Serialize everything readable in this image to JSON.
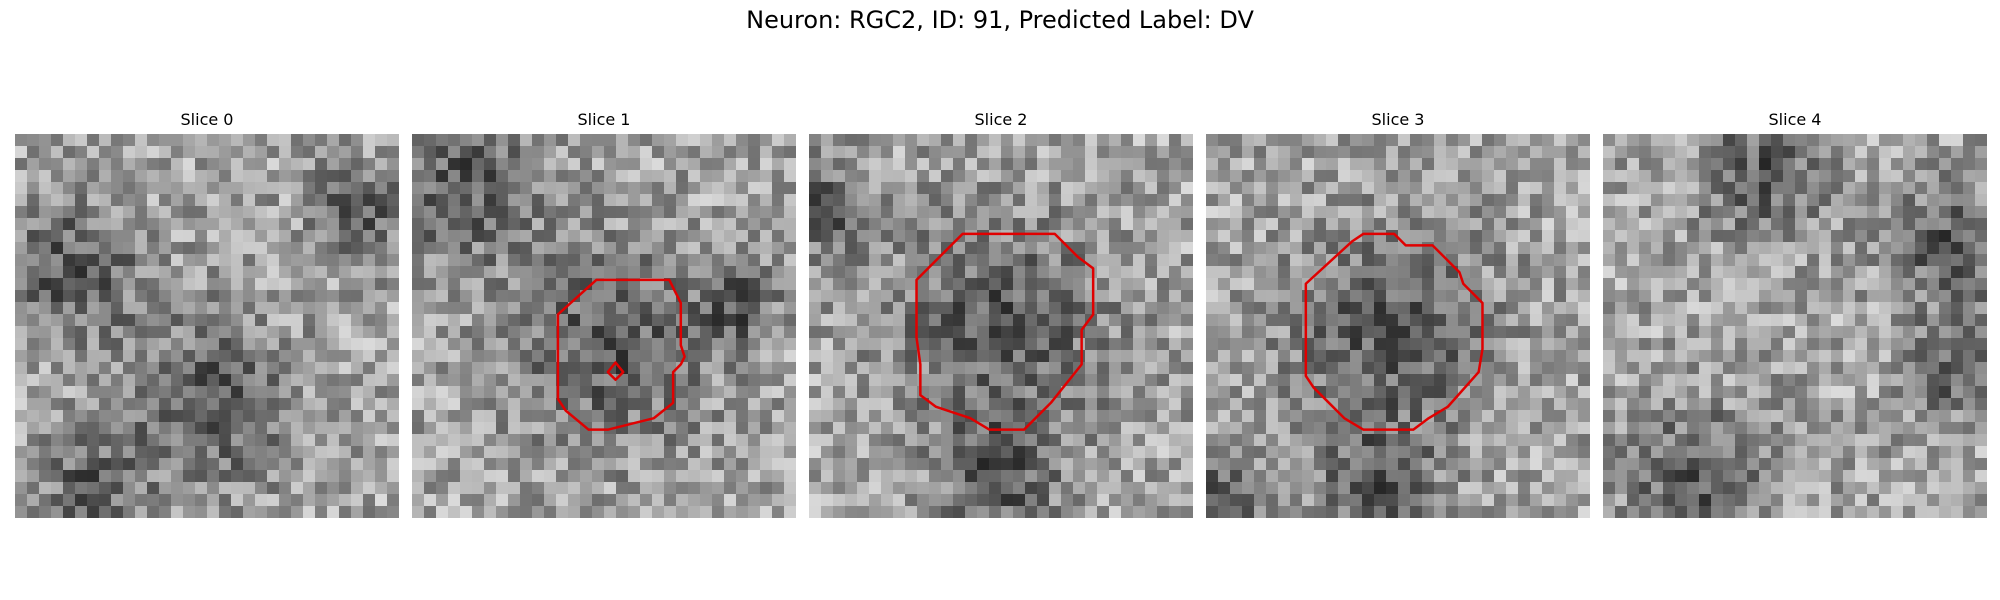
{
  "figure": {
    "title": "Neuron: RGC2, ID: 91, Predicted Label: DV"
  },
  "panels": [
    {
      "title": "Slice 0",
      "seed": 11,
      "dark_spots": [
        [
          0.15,
          0.35,
          0.18
        ],
        [
          0.5,
          0.7,
          0.22
        ],
        [
          0.2,
          0.92,
          0.12
        ],
        [
          0.9,
          0.2,
          0.12
        ]
      ],
      "contours": []
    },
    {
      "title": "Slice 1",
      "seed": 23,
      "dark_spots": [
        [
          0.13,
          0.13,
          0.2
        ],
        [
          0.52,
          0.55,
          0.25
        ],
        [
          0.85,
          0.45,
          0.1
        ]
      ],
      "contours": [
        {
          "color": "#e00000",
          "points": [
            [
              0.38,
              0.47
            ],
            [
              0.48,
              0.38
            ],
            [
              0.67,
              0.38
            ],
            [
              0.7,
              0.44
            ],
            [
              0.7,
              0.55
            ],
            [
              0.71,
              0.58
            ],
            [
              0.7,
              0.6
            ],
            [
              0.68,
              0.62
            ],
            [
              0.68,
              0.7
            ],
            [
              0.63,
              0.74
            ],
            [
              0.51,
              0.77
            ],
            [
              0.46,
              0.77
            ],
            [
              0.4,
              0.72
            ],
            [
              0.38,
              0.69
            ]
          ]
        },
        {
          "color": "#e00000",
          "points": [
            [
              0.53,
              0.595
            ],
            [
              0.55,
              0.62
            ],
            [
              0.53,
              0.64
            ],
            [
              0.51,
              0.62
            ]
          ]
        }
      ]
    },
    {
      "title": "Slice 2",
      "seed": 37,
      "dark_spots": [
        [
          0.5,
          0.5,
          0.28
        ],
        [
          0.05,
          0.2,
          0.12
        ],
        [
          0.5,
          0.9,
          0.15
        ]
      ],
      "contours": [
        {
          "color": "#e00000",
          "points": [
            [
              0.28,
              0.38
            ],
            [
              0.4,
              0.26
            ],
            [
              0.64,
              0.26
            ],
            [
              0.7,
              0.32
            ],
            [
              0.74,
              0.35
            ],
            [
              0.74,
              0.47
            ],
            [
              0.71,
              0.51
            ],
            [
              0.71,
              0.6
            ],
            [
              0.63,
              0.7
            ],
            [
              0.56,
              0.77
            ],
            [
              0.47,
              0.77
            ],
            [
              0.42,
              0.74
            ],
            [
              0.33,
              0.71
            ],
            [
              0.29,
              0.68
            ],
            [
              0.29,
              0.6
            ],
            [
              0.28,
              0.53
            ]
          ]
        }
      ]
    },
    {
      "title": "Slice 3",
      "seed": 53,
      "dark_spots": [
        [
          0.48,
          0.52,
          0.26
        ],
        [
          0.45,
          0.92,
          0.15
        ],
        [
          0.05,
          0.95,
          0.1
        ]
      ],
      "contours": [
        {
          "color": "#e00000",
          "points": [
            [
              0.26,
              0.39
            ],
            [
              0.38,
              0.28
            ],
            [
              0.41,
              0.26
            ],
            [
              0.49,
              0.26
            ],
            [
              0.52,
              0.29
            ],
            [
              0.59,
              0.29
            ],
            [
              0.62,
              0.32
            ],
            [
              0.66,
              0.36
            ],
            [
              0.67,
              0.39
            ],
            [
              0.72,
              0.44
            ],
            [
              0.72,
              0.56
            ],
            [
              0.71,
              0.62
            ],
            [
              0.63,
              0.71
            ],
            [
              0.58,
              0.74
            ],
            [
              0.54,
              0.77
            ],
            [
              0.41,
              0.77
            ],
            [
              0.36,
              0.74
            ],
            [
              0.28,
              0.66
            ],
            [
              0.26,
              0.63
            ]
          ]
        }
      ]
    },
    {
      "title": "Slice 4",
      "seed": 71,
      "dark_spots": [
        [
          0.42,
          0.1,
          0.16
        ],
        [
          0.25,
          0.9,
          0.18
        ],
        [
          0.9,
          0.3,
          0.15
        ],
        [
          0.9,
          0.62,
          0.12
        ]
      ],
      "contours": []
    }
  ]
}
